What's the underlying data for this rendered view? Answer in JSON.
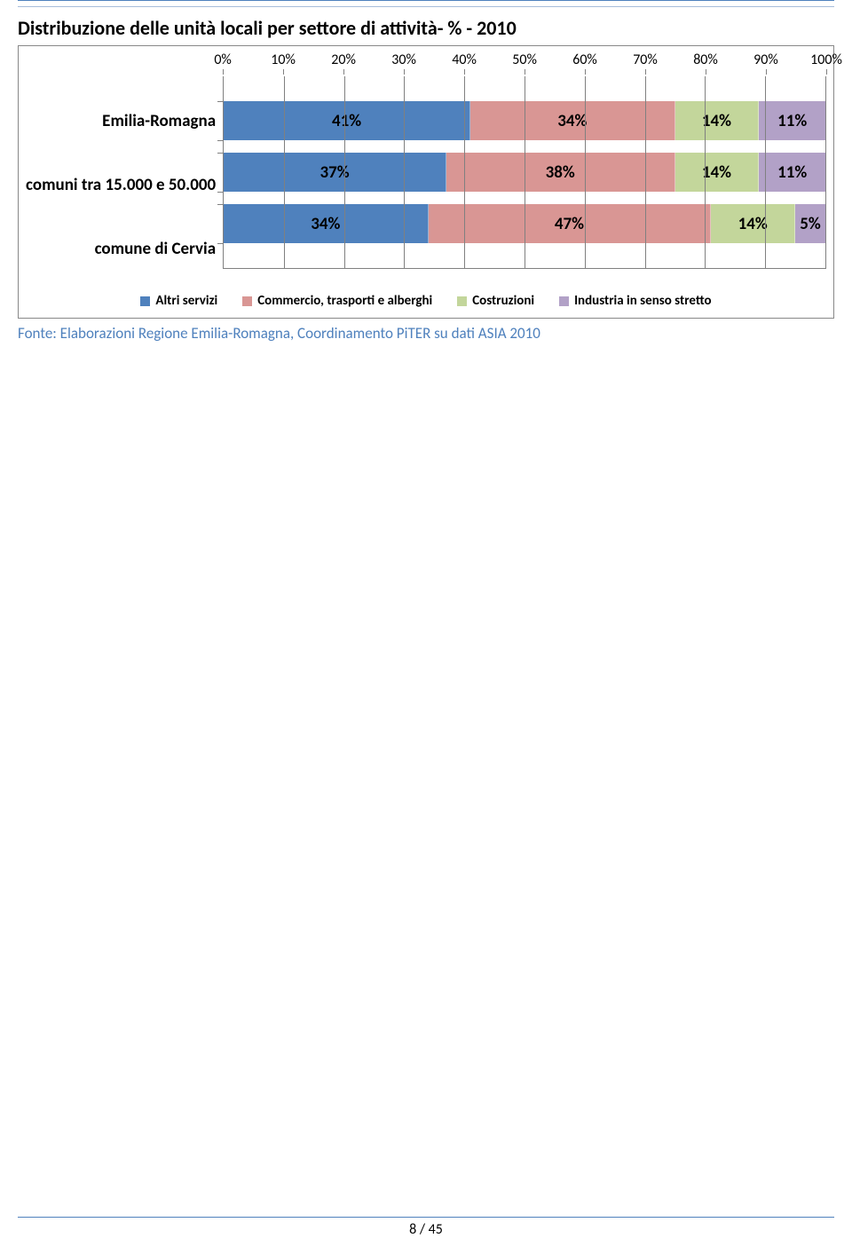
{
  "title": "Distribuzione delle unità locali per settore di attività- % - 2010",
  "title_fontsize": 22,
  "source": "Fonte: Elaborazioni Regione Emilia-Romagna, Coordinamento PiTER su dati ASIA 2010",
  "source_fontsize": 17,
  "page_number": "8 / 45",
  "chart": {
    "type": "stacked_bar_horizontal",
    "xlim": [
      0,
      100
    ],
    "xtick_step": 10,
    "xtick_suffix": "%",
    "xaxis_fontsize": 16,
    "ylabel_fontsize": 19,
    "bar_label_fontsize": 19,
    "legend_fontsize": 15,
    "grid_color": "#808080",
    "background_color": "#ffffff",
    "categories": [
      {
        "label": "Emilia-Romagna",
        "values": [
          41,
          34,
          14,
          11
        ]
      },
      {
        "label": "comuni tra 15.000 e 50.000",
        "values": [
          37,
          38,
          14,
          11
        ]
      },
      {
        "label": "comune di Cervia",
        "values": [
          34,
          47,
          14,
          5
        ]
      }
    ],
    "series": [
      {
        "name": "Altri servizi",
        "color": "#4f81bd"
      },
      {
        "name": "Commercio, trasporti e alberghi",
        "color": "#d99694"
      },
      {
        "name": "Costruzioni",
        "color": "#c3d69b"
      },
      {
        "name": "Industria in senso stretto",
        "color": "#b2a1c7"
      }
    ]
  }
}
